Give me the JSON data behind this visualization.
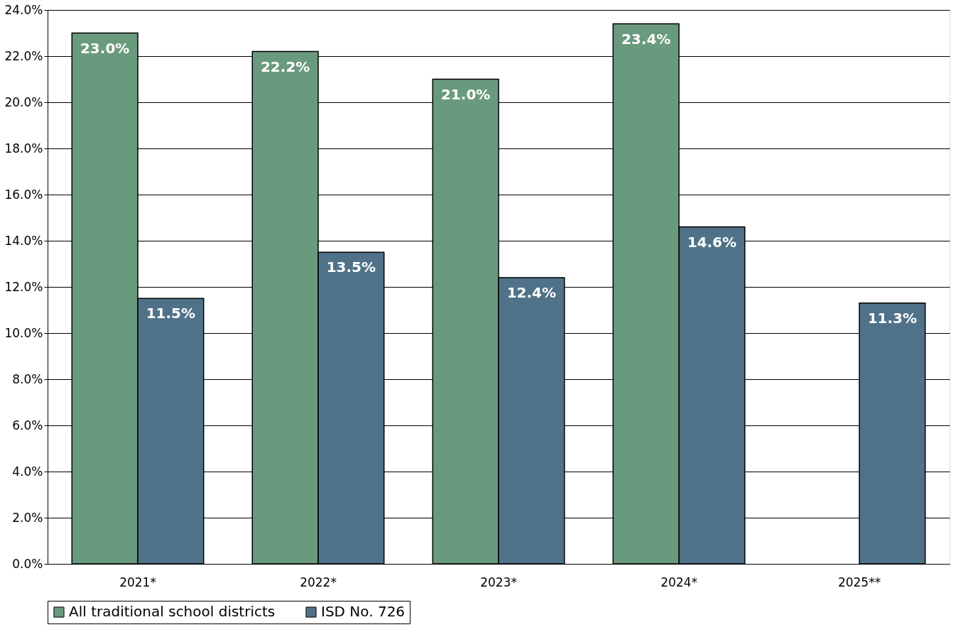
{
  "chart_data": {
    "type": "bar",
    "categories": [
      "2021*",
      "2022*",
      "2023*",
      "2024*",
      "2025**"
    ],
    "series": [
      {
        "name": "All traditional school districts",
        "color": "#6a9a7e",
        "values": [
          23.0,
          22.2,
          21.0,
          23.4,
          null
        ],
        "value_labels": [
          "23.0%",
          "22.2%",
          "21.0%",
          "23.4%",
          null
        ]
      },
      {
        "name": "ISD No. 726",
        "color": "#507289",
        "values": [
          11.5,
          13.5,
          12.4,
          14.6,
          11.3
        ],
        "value_labels": [
          "11.5%",
          "13.5%",
          "12.4%",
          "14.6%",
          "11.3%"
        ]
      }
    ],
    "ylim": [
      0,
      24
    ],
    "yticks": [
      {
        "value": 0,
        "label": "0.0%"
      },
      {
        "value": 2,
        "label": "2.0%"
      },
      {
        "value": 4,
        "label": "4.0%"
      },
      {
        "value": 6,
        "label": "6.0%"
      },
      {
        "value": 8,
        "label": "8.0%"
      },
      {
        "value": 10,
        "label": "10.0%"
      },
      {
        "value": 12,
        "label": "12.0%"
      },
      {
        "value": 14,
        "label": "14.0%"
      },
      {
        "value": 16,
        "label": "16.0%"
      },
      {
        "value": 18,
        "label": "18.0%"
      },
      {
        "value": 20,
        "label": "20.0%"
      },
      {
        "value": 22,
        "label": "22.0%"
      },
      {
        "value": 24,
        "label": "24.0%"
      }
    ],
    "grid": "y",
    "legend": "bottom"
  }
}
